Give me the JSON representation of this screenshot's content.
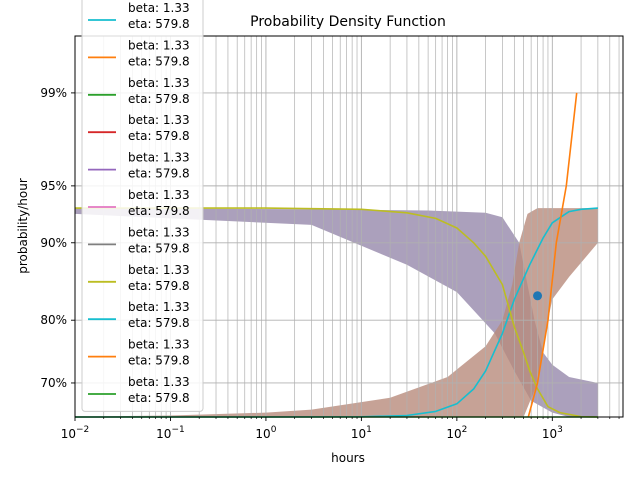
{
  "chart_data": {
    "type": "line",
    "title": "Probability Density Function",
    "xlabel": "hours",
    "ylabel": "probability/hour",
    "x_scale": "log",
    "xlim": [
      0.01,
      5500
    ],
    "y_scale": "weibull",
    "ylim": [
      0.6425,
      0.9975
    ],
    "x_ticks": [
      {
        "value": 0.01,
        "base": "10",
        "exp": "−2"
      },
      {
        "value": 0.1,
        "base": "10",
        "exp": "−1"
      },
      {
        "value": 1,
        "base": "10",
        "exp": "0"
      },
      {
        "value": 10,
        "base": "10",
        "exp": "1"
      },
      {
        "value": 100,
        "base": "10",
        "exp": "2"
      },
      {
        "value": 1000,
        "base": "10",
        "exp": "3"
      }
    ],
    "y_ticks": [
      {
        "value": 0.7,
        "label": "70%"
      },
      {
        "value": 0.8,
        "label": "80%"
      },
      {
        "value": 0.9,
        "label": "90%"
      },
      {
        "value": 0.95,
        "label": "95%"
      },
      {
        "value": 0.99,
        "label": "99%"
      }
    ],
    "grid": true,
    "legend_placement": "upper-left",
    "legend": [
      {
        "line1": "beta: 1.33",
        "line2": "eta: 579.8",
        "color": "#17becf"
      },
      {
        "line1": "beta: 1.33",
        "line2": "eta: 579.8",
        "color": "#ff7f0e"
      },
      {
        "line1": "beta: 1.33",
        "line2": "eta: 579.8",
        "color": "#2ca02c"
      },
      {
        "line1": "beta: 1.33",
        "line2": "eta: 579.8",
        "color": "#d62728"
      },
      {
        "line1": "beta: 1.33",
        "line2": "eta: 579.8",
        "color": "#9467bd"
      },
      {
        "line1": "beta: 1.33",
        "line2": "eta: 579.8",
        "color": "#e377c2"
      },
      {
        "line1": "beta: 1.33",
        "line2": "eta: 579.8",
        "color": "#7f7f7f"
      },
      {
        "line1": "beta: 1.33",
        "line2": "eta: 579.8",
        "color": "#bcbd22"
      },
      {
        "line1": "beta: 1.33",
        "line2": "eta: 579.8",
        "color": "#17becf"
      },
      {
        "line1": "beta: 1.33",
        "line2": "eta: 579.8",
        "color": "#ff7f0e"
      },
      {
        "line1": "beta: 1.33",
        "line2": "eta: 579.8",
        "color": "#2ca02c"
      }
    ],
    "bands": [
      {
        "name": "band-purple",
        "color": "#9c8fb0",
        "upper": [
          [
            0.01,
            0.933
          ],
          [
            3,
            0.932
          ],
          [
            50,
            0.931
          ],
          [
            200,
            0.929
          ],
          [
            300,
            0.925
          ],
          [
            450,
            0.9
          ],
          [
            550,
            0.85
          ],
          [
            650,
            0.8
          ],
          [
            800,
            0.75
          ],
          [
            1000,
            0.73
          ],
          [
            1500,
            0.71
          ],
          [
            3000,
            0.7
          ]
        ],
        "lower": [
          [
            3000,
            0.6425
          ],
          [
            1500,
            0.6425
          ],
          [
            1000,
            0.65
          ],
          [
            600,
            0.67
          ],
          [
            400,
            0.72
          ],
          [
            250,
            0.78
          ],
          [
            100,
            0.84
          ],
          [
            30,
            0.875
          ],
          [
            3,
            0.918
          ],
          [
            0.01,
            0.928
          ]
        ]
      },
      {
        "name": "band-brown",
        "color": "#b88b7c",
        "upper": [
          [
            0.01,
            0.643
          ],
          [
            0.1,
            0.645
          ],
          [
            1,
            0.65
          ],
          [
            3,
            0.655
          ],
          [
            20,
            0.675
          ],
          [
            80,
            0.71
          ],
          [
            200,
            0.76
          ],
          [
            300,
            0.8
          ],
          [
            380,
            0.85
          ],
          [
            450,
            0.9
          ],
          [
            550,
            0.928
          ],
          [
            700,
            0.933
          ],
          [
            3000,
            0.933
          ]
        ],
        "lower": [
          [
            3000,
            0.9
          ],
          [
            1500,
            0.86
          ],
          [
            1000,
            0.83
          ],
          [
            900,
            0.8
          ],
          [
            800,
            0.75
          ],
          [
            700,
            0.7
          ],
          [
            500,
            0.6425
          ],
          [
            0.01,
            0.6425
          ]
        ]
      }
    ],
    "series": [
      {
        "color": "#17becf",
        "values": [
          [
            0.01,
            0.6425
          ],
          [
            1,
            0.6425
          ],
          [
            10,
            0.6428
          ],
          [
            30,
            0.645
          ],
          [
            60,
            0.652
          ],
          [
            100,
            0.665
          ],
          [
            150,
            0.69
          ],
          [
            200,
            0.72
          ],
          [
            300,
            0.78
          ],
          [
            400,
            0.83
          ],
          [
            580,
            0.875
          ],
          [
            800,
            0.905
          ],
          [
            1000,
            0.92
          ],
          [
            1500,
            0.93
          ],
          [
            2000,
            0.932
          ],
          [
            3000,
            0.933
          ]
        ]
      },
      {
        "color": "#bcbd22",
        "values": [
          [
            0.01,
            0.933
          ],
          [
            1,
            0.933
          ],
          [
            10,
            0.932
          ],
          [
            30,
            0.929
          ],
          [
            60,
            0.924
          ],
          [
            100,
            0.915
          ],
          [
            150,
            0.9
          ],
          [
            200,
            0.885
          ],
          [
            300,
            0.85
          ],
          [
            400,
            0.79
          ],
          [
            500,
            0.75
          ],
          [
            580,
            0.72
          ],
          [
            700,
            0.69
          ],
          [
            900,
            0.66
          ],
          [
            1200,
            0.65
          ],
          [
            2000,
            0.643
          ],
          [
            3000,
            0.6425
          ]
        ]
      },
      {
        "color": "#ff7f0e",
        "values": [
          [
            560,
            0.6425
          ],
          [
            700,
            0.7
          ],
          [
            900,
            0.8
          ],
          [
            1100,
            0.9
          ],
          [
            1400,
            0.95
          ],
          [
            1800,
            0.99
          ]
        ]
      },
      {
        "color": "#2ca02c",
        "values": [
          [
            0.01,
            0.6425
          ],
          [
            3000,
            0.6425
          ]
        ]
      }
    ],
    "points": [
      {
        "x": 700,
        "y": 0.835,
        "color": "#1f77b4"
      }
    ]
  }
}
